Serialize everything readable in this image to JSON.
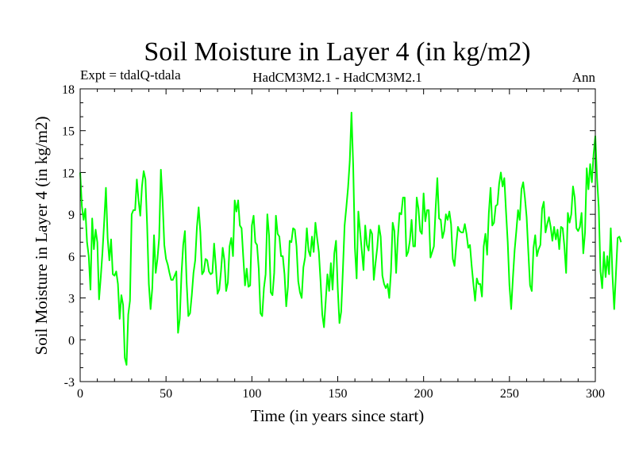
{
  "chart_data": {
    "type": "line",
    "title": "Soil Moisture in Layer 4 (in kg/m2)",
    "subtitle_left": "Expt = tdalQ-tdala",
    "subtitle_center": "HadCM3M2.1 - HadCM3M2.1",
    "subtitle_right": "Ann",
    "xlabel": "Time (in years since start)",
    "ylabel": "Soil Moisture in Layer 4 (in kg/m2)",
    "xlim": [
      0,
      300
    ],
    "ylim": [
      -3,
      18
    ],
    "xticks": [
      0,
      50,
      100,
      150,
      200,
      250,
      300
    ],
    "yticks": [
      -3,
      0,
      3,
      6,
      9,
      12,
      15,
      18
    ],
    "line_color": "#00ff00",
    "grid": false,
    "series": [
      {
        "name": "Soil Moisture Layer 4",
        "x_start": 0,
        "x_step": 1,
        "values": [
          12.0,
          9.6,
          8.6,
          9.4,
          7.0,
          6.0,
          3.6,
          8.7,
          6.5,
          7.9,
          7.0,
          2.9,
          4.5,
          6.3,
          8.5,
          10.9,
          7.3,
          5.7,
          7.2,
          4.7,
          4.6,
          4.9,
          4.0,
          1.5,
          3.2,
          2.5,
          -1.3,
          -1.8,
          1.8,
          2.8,
          9.0,
          9.3,
          9.3,
          11.5,
          10.0,
          8.9,
          11.0,
          12.1,
          11.5,
          8.2,
          4.0,
          2.2,
          3.7,
          7.5,
          4.8,
          5.8,
          7.3,
          12.2,
          10.0,
          6.8,
          5.8,
          5.4,
          4.8,
          4.3,
          4.3,
          4.6,
          4.9,
          0.5,
          1.5,
          4.7,
          6.8,
          7.8,
          4.1,
          1.7,
          1.9,
          3.2,
          4.8,
          5.7,
          8.1,
          9.5,
          7.7,
          4.7,
          4.9,
          5.8,
          5.7,
          4.9,
          4.7,
          4.8,
          6.9,
          5.3,
          3.3,
          3.6,
          4.9,
          6.6,
          5.7,
          3.5,
          4.1,
          6.7,
          7.3,
          6.0,
          10.0,
          9.2,
          10.0,
          8.2,
          8.0,
          5.9,
          3.9,
          5.1,
          3.8,
          3.9,
          8.2,
          8.9,
          7.0,
          6.8,
          5.1,
          1.9,
          1.7,
          3.7,
          4.7,
          9.0,
          7.5,
          3.4,
          3.2,
          4.8,
          8.9,
          7.6,
          7.4,
          6.0,
          6.0,
          4.7,
          2.4,
          3.8,
          7.1,
          7.0,
          8.0,
          7.9,
          6.7,
          4.2,
          3.4,
          3.0,
          5.2,
          5.9,
          8.0,
          6.4,
          6.0,
          7.4,
          6.3,
          8.4,
          7.3,
          6.3,
          4.2,
          1.8,
          0.9,
          2.8,
          4.7,
          3.5,
          5.5,
          3.6,
          6.2,
          7.1,
          3.7,
          1.2,
          2.0,
          5.0,
          8.2,
          9.5,
          10.9,
          12.8,
          16.3,
          12.5,
          6.6,
          4.4,
          9.2,
          7.8,
          6.4,
          5.0,
          8.2,
          6.8,
          6.4,
          7.9,
          7.6,
          4.3,
          5.5,
          6.6,
          8.2,
          7.4,
          4.6,
          4.0,
          3.7,
          4.0,
          3.0,
          4.9,
          8.4,
          7.8,
          4.8,
          7.3,
          9.1,
          9.0,
          10.2,
          10.2,
          6.0,
          6.3,
          7.1,
          8.6,
          6.7,
          6.7,
          10.2,
          9.4,
          7.8,
          7.6,
          10.5,
          8.5,
          9.3,
          9.3,
          5.9,
          6.3,
          6.7,
          9.4,
          11.6,
          8.7,
          8.6,
          7.3,
          7.8,
          9.0,
          8.6,
          9.2,
          8.3,
          5.8,
          5.3,
          6.8,
          8.1,
          7.8,
          7.7,
          7.7,
          8.3,
          7.6,
          6.6,
          6.8,
          5.3,
          4.0,
          2.8,
          4.4,
          4.0,
          4.0,
          3.1,
          6.7,
          7.6,
          6.1,
          9.1,
          10.9,
          8.2,
          8.4,
          9.6,
          9.7,
          11.2,
          12.0,
          11.0,
          11.6,
          9.2,
          7.0,
          3.9,
          2.2,
          4.4,
          6.4,
          7.8,
          9.3,
          8.6,
          10.8,
          11.3,
          10.2,
          8.8,
          6.3,
          3.9,
          3.5,
          6.6,
          7.5,
          6.0,
          6.5,
          6.8,
          9.4,
          9.9,
          7.7,
          8.3,
          8.8,
          8.1,
          7.1,
          8.1,
          7.2,
          7.9,
          6.5,
          8.1,
          8.0,
          6.7,
          4.8,
          9.1,
          8.4,
          9.0,
          11.0,
          10.2,
          8.0,
          7.8,
          8.1,
          9.1,
          6.2,
          7.7,
          12.3,
          10.8,
          12.6,
          11.3,
          13.3,
          14.6,
          11.6,
          9.5,
          4.9,
          3.7,
          6.3,
          4.5,
          6.0,
          4.7,
          8.0,
          4.6,
          2.2,
          4.7,
          7.3,
          7.4,
          7.0
        ]
      }
    ]
  }
}
